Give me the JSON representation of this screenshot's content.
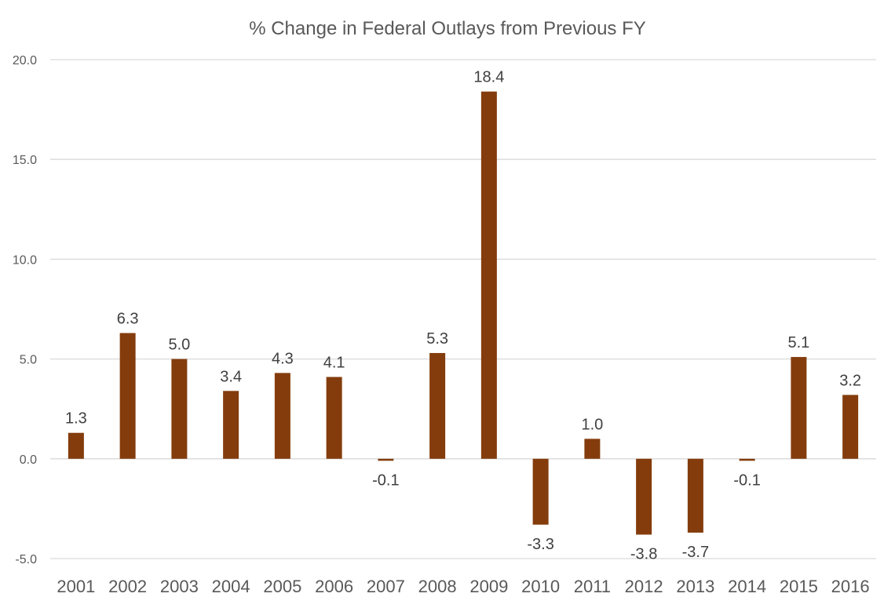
{
  "chart_data": {
    "type": "bar",
    "title": "% Change in Federal Outlays from Previous FY",
    "xlabel": "",
    "ylabel": "",
    "categories": [
      "2001",
      "2002",
      "2003",
      "2004",
      "2005",
      "2006",
      "2007",
      "2008",
      "2009",
      "2010",
      "2011",
      "2012",
      "2013",
      "2014",
      "2015",
      "2016"
    ],
    "values": [
      1.3,
      6.3,
      5.0,
      3.4,
      4.3,
      4.1,
      -0.1,
      5.3,
      18.4,
      -3.3,
      1.0,
      -3.8,
      -3.7,
      -0.1,
      5.1,
      3.2
    ],
    "data_labels": [
      "1.3",
      "6.3",
      "5.0",
      "3.4",
      "4.3",
      "4.1",
      "-0.1",
      "5.3",
      "18.4",
      "-3.3",
      "1.0",
      "-3.8",
      "-3.7",
      "-0.1",
      "5.1",
      "3.2"
    ],
    "ylim": [
      -5,
      20
    ],
    "yticks": [
      20,
      15,
      10,
      5,
      0,
      -5
    ],
    "ytick_labels": [
      "20.0",
      "15.0",
      "10.0",
      "5.0",
      "0.0",
      "-5.0"
    ],
    "grid": true,
    "bar_color": "#843c0c",
    "legend": "none"
  }
}
